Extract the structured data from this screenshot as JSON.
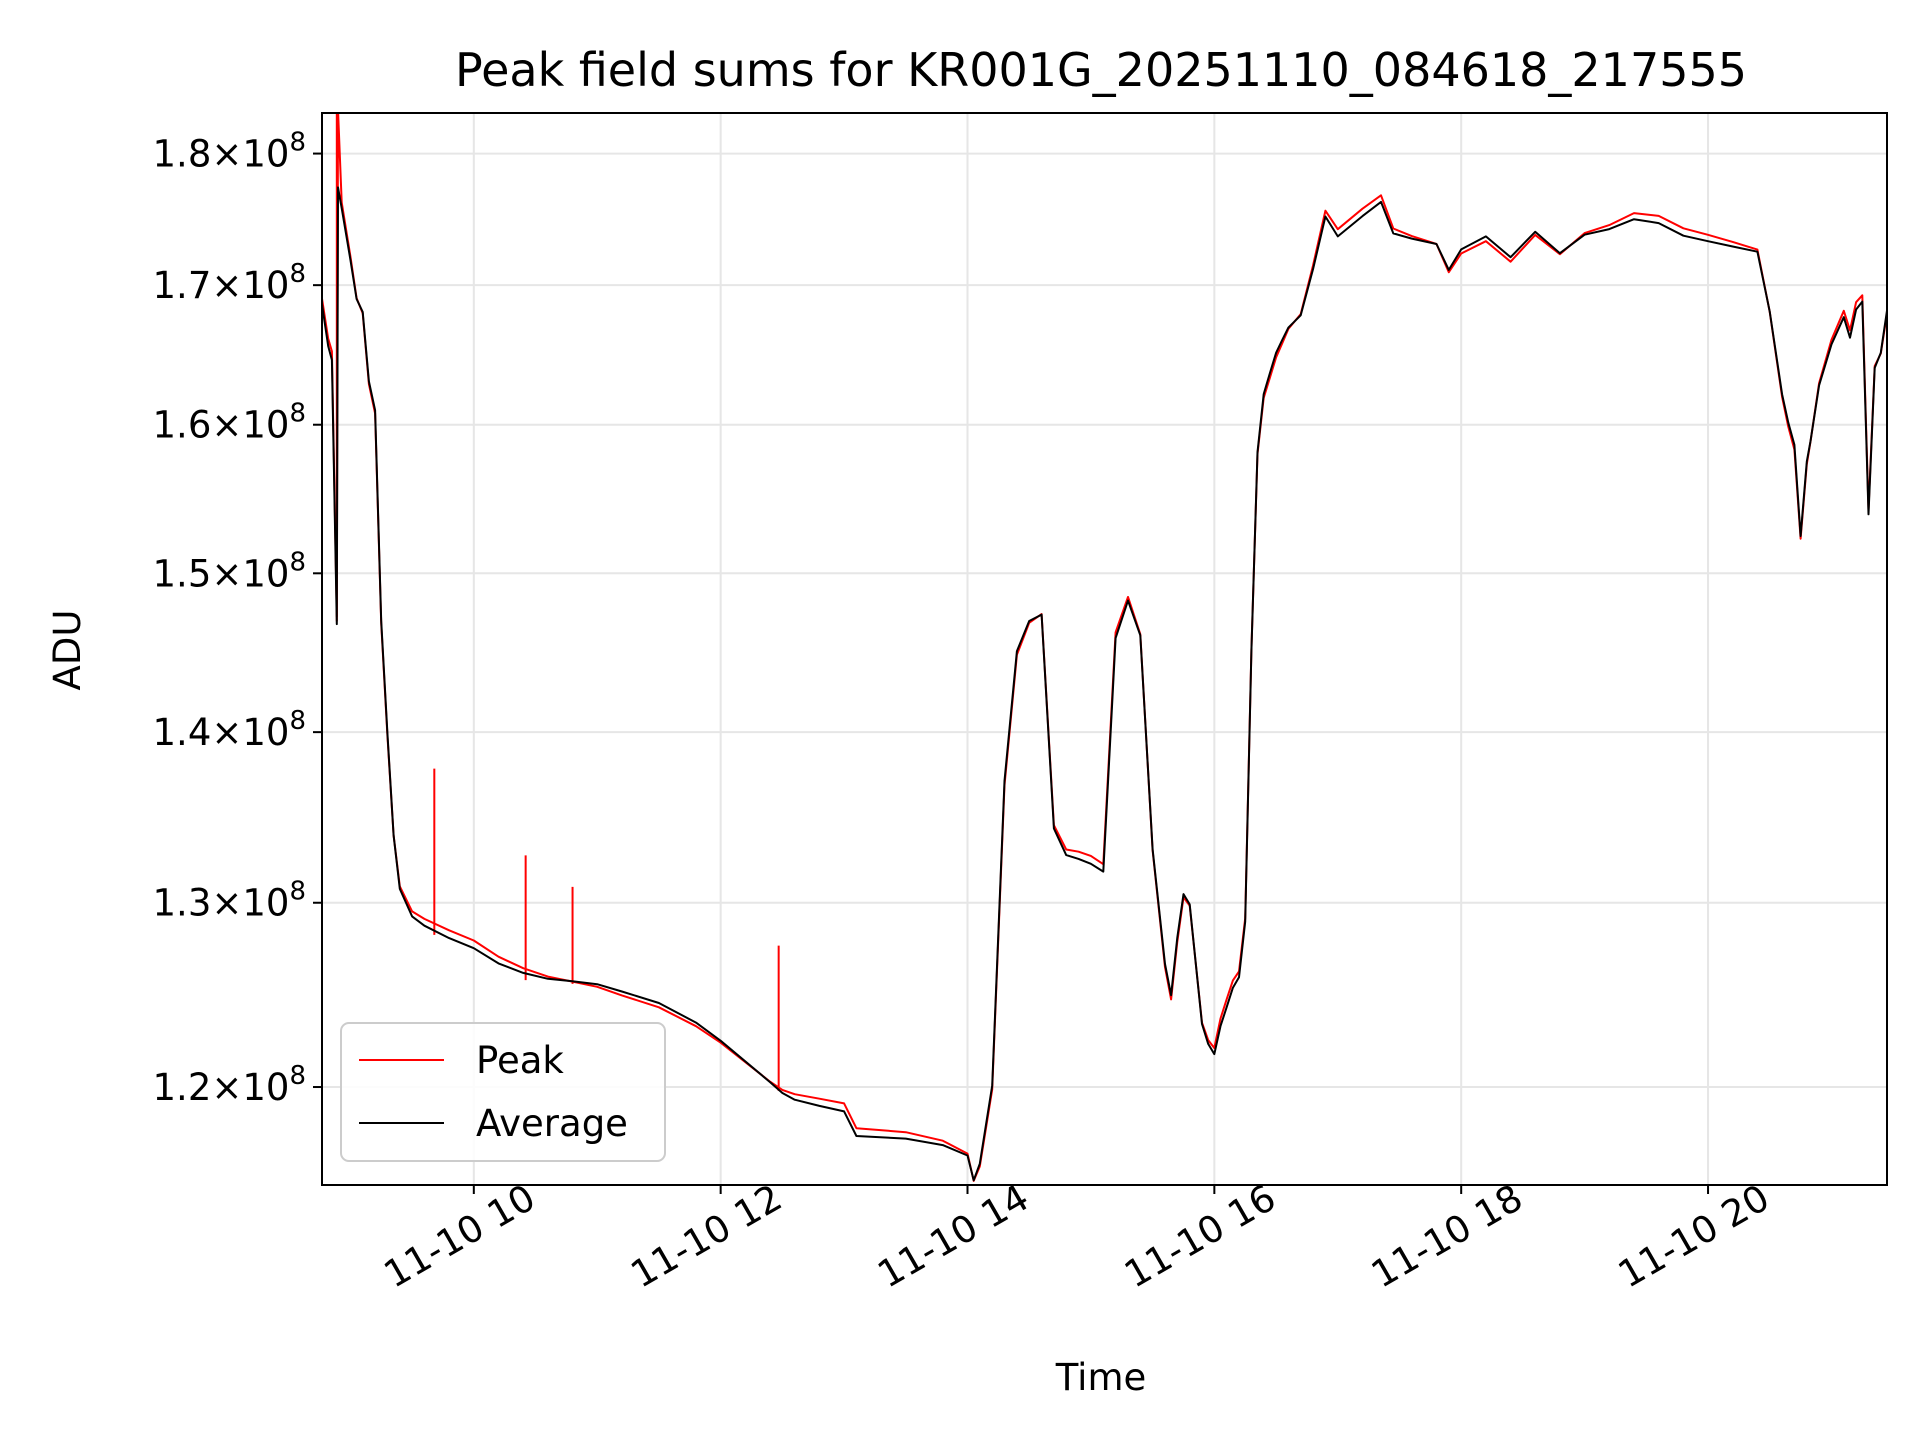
{
  "chart_data": {
    "type": "line",
    "title": "Peak field sums for KR001G_20251110_084618_217555",
    "xlabel": "Time",
    "ylabel": "ADU",
    "yscale": "log",
    "grid": true,
    "legend_position": "lower-left",
    "xlim_hours": [
      8.77,
      21.45
    ],
    "ylim": [
      115000000,
      183200000
    ],
    "x_ticks": [
      {
        "hour": 10,
        "label": "11-10 10"
      },
      {
        "hour": 12,
        "label": "11-10 12"
      },
      {
        "hour": 14,
        "label": "11-10 14"
      },
      {
        "hour": 16,
        "label": "11-10 16"
      },
      {
        "hour": 18,
        "label": "11-10 18"
      },
      {
        "hour": 20,
        "label": "11-10 20"
      }
    ],
    "y_ticks": [
      {
        "value": 120000000,
        "mantissa": "1.2",
        "base": "10",
        "exp": "8"
      },
      {
        "value": 130000000,
        "mantissa": "1.3",
        "base": "10",
        "exp": "8"
      },
      {
        "value": 140000000,
        "mantissa": "1.4",
        "base": "10",
        "exp": "8"
      },
      {
        "value": 150000000,
        "mantissa": "1.5",
        "base": "10",
        "exp": "8"
      },
      {
        "value": 160000000,
        "mantissa": "1.6",
        "base": "10",
        "exp": "8"
      },
      {
        "value": 170000000,
        "mantissa": "1.7",
        "base": "10",
        "exp": "8"
      },
      {
        "value": 180000000,
        "mantissa": "1.8",
        "base": "10",
        "exp": "8"
      }
    ],
    "series": [
      {
        "name": "Peak",
        "color": "#ff0000",
        "hours": [
          8.77,
          8.82,
          8.85,
          8.89,
          8.9,
          8.93,
          9.0,
          9.05,
          9.1,
          9.15,
          9.2,
          9.25,
          9.3,
          9.35,
          9.4,
          9.5,
          9.6,
          9.8,
          10.0,
          10.2,
          10.4,
          10.6,
          10.8,
          11.0,
          11.2,
          11.5,
          11.8,
          12.0,
          12.4,
          12.5,
          12.6,
          12.8,
          13.0,
          13.1,
          13.5,
          13.8,
          14.0,
          14.05,
          14.1,
          14.2,
          14.3,
          14.4,
          14.5,
          14.6,
          14.7,
          14.8,
          14.9,
          15.0,
          15.1,
          15.2,
          15.3,
          15.4,
          15.5,
          15.6,
          15.65,
          15.7,
          15.75,
          15.8,
          15.9,
          15.95,
          16.0,
          16.05,
          16.1,
          16.15,
          16.2,
          16.25,
          16.3,
          16.35,
          16.4,
          16.45,
          16.5,
          16.55,
          16.6,
          16.7,
          16.8,
          16.9,
          17.0,
          17.2,
          17.35,
          17.45,
          17.6,
          17.8,
          17.9,
          18.0,
          18.2,
          18.4,
          18.6,
          18.8,
          19.0,
          19.2,
          19.4,
          19.6,
          19.8,
          20.0,
          20.2,
          20.4,
          20.5,
          20.6,
          20.65,
          20.7,
          20.75,
          20.8,
          20.83,
          20.9,
          21.0,
          21.1,
          21.15,
          21.2,
          21.25,
          21.3,
          21.35,
          21.4,
          21.45
        ],
        "values": [
          169000000,
          166000000,
          165000000,
          147000000,
          183200000,
          176000000,
          172000000,
          169000000,
          168000000,
          163000000,
          161000000,
          147000000,
          140000000,
          134000000,
          131000000,
          129500000,
          129000000,
          128300000,
          127700000,
          126800000,
          126200000,
          125800000,
          125600000,
          125400000,
          125000000,
          124400000,
          123400000,
          122500000,
          120400000,
          119900000,
          119600000,
          119300000,
          119000000,
          117700000,
          117500000,
          117100000,
          116500000,
          115200000,
          116000000,
          120000000,
          137000000,
          145000000,
          147000000,
          147500000,
          134500000,
          133000000,
          132800000,
          132500000,
          132000000,
          146000000,
          148300000,
          146000000,
          133000000,
          126500000,
          124800000,
          128000000,
          130500000,
          130000000,
          123500000,
          122500000,
          122000000,
          123500000,
          124500000,
          125500000,
          126000000,
          129000000,
          145000000,
          158000000,
          162000000,
          163500000,
          165000000,
          166000000,
          167000000,
          168000000,
          171500000,
          175500000,
          174000000,
          175500000,
          176500000,
          174000000,
          173500000,
          173000000,
          171000000,
          172500000,
          173500000,
          172000000,
          174000000,
          172500000,
          174000000,
          174500000,
          175300000,
          175000000,
          174000000,
          173500000,
          173000000,
          172500000,
          168000000,
          162000000,
          160000000,
          158500000,
          152500000,
          157500000,
          159000000,
          163000000,
          166000000,
          168000000,
          166500000,
          168500000,
          169000000,
          154000000,
          164000000,
          165000000,
          168000000
        ],
        "spikes": [
          {
            "hour": 8.89,
            "value": 183200000
          },
          {
            "hour": 9.68,
            "value": 137800000
          },
          {
            "hour": 10.42,
            "value": 132700000
          },
          {
            "hour": 10.8,
            "value": 130900000
          },
          {
            "hour": 12.47,
            "value": 127600000
          }
        ]
      },
      {
        "name": "Average",
        "color": "#000000",
        "hours": [
          8.77,
          8.82,
          8.85,
          8.89,
          8.9,
          8.93,
          9.0,
          9.05,
          9.1,
          9.15,
          9.2,
          9.25,
          9.3,
          9.35,
          9.4,
          9.5,
          9.6,
          9.8,
          10.0,
          10.2,
          10.4,
          10.6,
          10.8,
          11.0,
          11.2,
          11.5,
          11.8,
          12.0,
          12.4,
          12.5,
          12.6,
          12.8,
          13.0,
          13.1,
          13.5,
          13.8,
          14.0,
          14.05,
          14.1,
          14.2,
          14.3,
          14.4,
          14.5,
          14.6,
          14.7,
          14.8,
          14.9,
          15.0,
          15.1,
          15.2,
          15.3,
          15.4,
          15.5,
          15.6,
          15.65,
          15.7,
          15.75,
          15.8,
          15.9,
          15.95,
          16.0,
          16.05,
          16.1,
          16.15,
          16.2,
          16.25,
          16.3,
          16.35,
          16.4,
          16.45,
          16.5,
          16.55,
          16.6,
          16.7,
          16.8,
          16.9,
          17.0,
          17.2,
          17.35,
          17.45,
          17.6,
          17.8,
          17.9,
          18.0,
          18.2,
          18.4,
          18.6,
          18.8,
          19.0,
          19.2,
          19.4,
          19.6,
          19.8,
          20.0,
          20.2,
          20.4,
          20.5,
          20.6,
          20.65,
          20.7,
          20.75,
          20.8,
          20.83,
          20.9,
          21.0,
          21.1,
          21.15,
          21.2,
          21.25,
          21.3,
          21.35,
          21.4,
          21.45
        ],
        "values": [
          168800000,
          165800000,
          164800000,
          146900000,
          177500000,
          175800000,
          171800000,
          168800000,
          167800000,
          162800000,
          160800000,
          146800000,
          139900000,
          133900000,
          130900000,
          129400000,
          128900000,
          128200000,
          127600000,
          126700000,
          126100000,
          125700000,
          125500000,
          125300000,
          124900000,
          124300000,
          123300000,
          122400000,
          120300000,
          119800000,
          119500000,
          119200000,
          118900000,
          117600000,
          117400000,
          117000000,
          116400000,
          115100000,
          115900000,
          119900000,
          136900000,
          144900000,
          146900000,
          147400000,
          134400000,
          132900000,
          132700000,
          132400000,
          131900000,
          145900000,
          148200000,
          145900000,
          132900000,
          126400000,
          124700000,
          127900000,
          130400000,
          129900000,
          123400000,
          122400000,
          121900000,
          123400000,
          124400000,
          125400000,
          125900000,
          128900000,
          144900000,
          157900000,
          161900000,
          163400000,
          164900000,
          165900000,
          166900000,
          167900000,
          171400000,
          175400000,
          173900000,
          175400000,
          176400000,
          173900000,
          173400000,
          172900000,
          170900000,
          172400000,
          173400000,
          171900000,
          173900000,
          172400000,
          173900000,
          174400000,
          175200000,
          174900000,
          173900000,
          173400000,
          172900000,
          172400000,
          167900000,
          161900000,
          159900000,
          158400000,
          152300000,
          157400000,
          158900000,
          162900000,
          165900000,
          167900000,
          166400000,
          168400000,
          168900000,
          153900000,
          163900000,
          164900000,
          167900000
        ]
      }
    ]
  }
}
